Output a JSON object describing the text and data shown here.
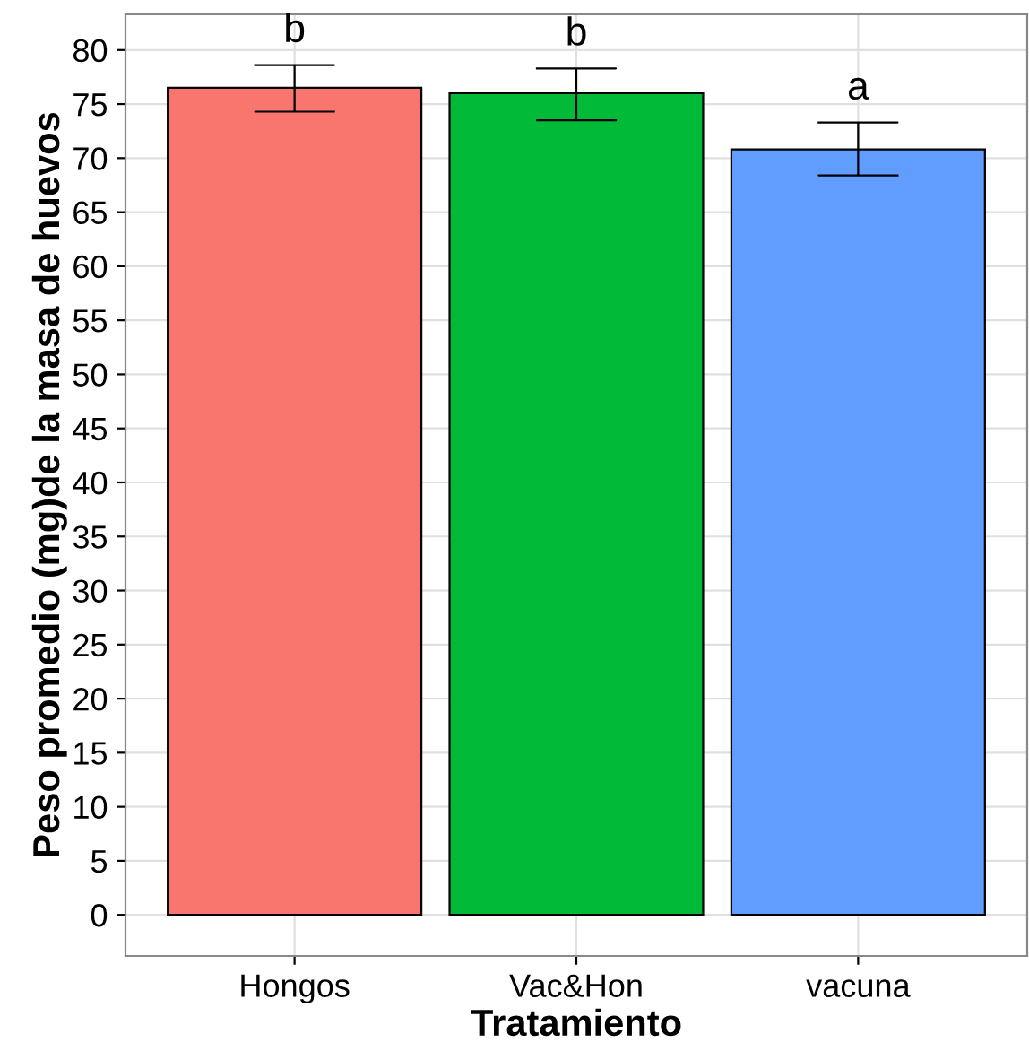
{
  "chart_data": {
    "type": "bar",
    "xlabel": "Tratamiento",
    "ylabel": "Peso promedio (mg)de la masa de huevos",
    "categories": [
      "Hongos",
      "Vac&Hon",
      "vacuna"
    ],
    "values": [
      76.5,
      76.0,
      70.8
    ],
    "colors": [
      "#f8766d",
      "#00ba38",
      "#619cff"
    ],
    "errors": [
      [
        74.3,
        78.6
      ],
      [
        73.5,
        78.3
      ],
      [
        68.4,
        73.3
      ]
    ],
    "ylim": [
      -3.8,
      83.3
    ],
    "yticks": [
      0,
      5,
      10,
      15,
      20,
      25,
      30,
      35,
      40,
      45,
      50,
      55,
      60,
      65,
      70,
      75,
      80
    ],
    "grid": true,
    "annotations": [
      "b",
      "b",
      "a"
    ]
  }
}
